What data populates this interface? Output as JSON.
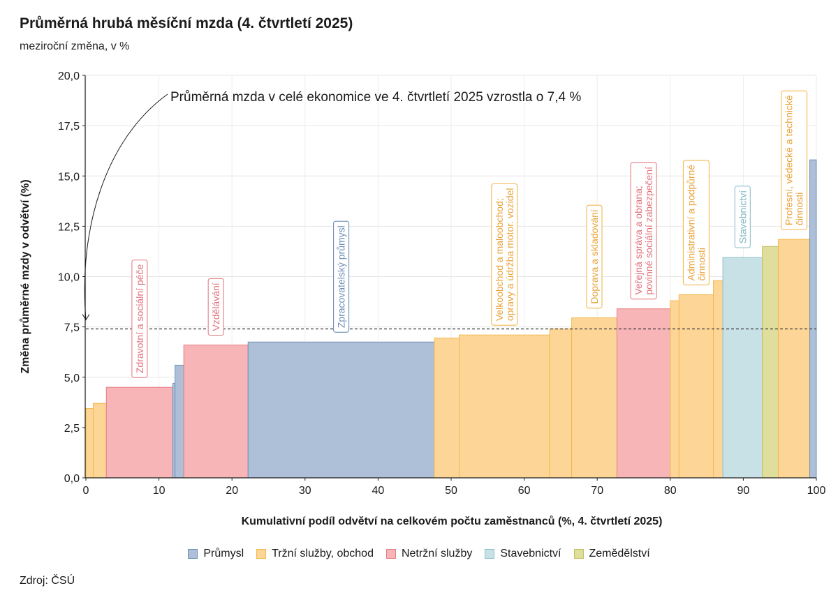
{
  "title": "Průměrná hrubá měsíční mzda (4. čtvrtletí 2025)",
  "subtitle": "meziroční změna, v %",
  "source": "Zdroj: ČSÚ",
  "chart_data": {
    "type": "bar",
    "variant": "variable-width (marimekko) bars",
    "xlabel": "Kumulativní podíl odvětví na celkovém počtu zaměstnanců (%, 4. čtvrtletí 2025)",
    "ylabel": "Změna průměrné mzdy v odvětví (%)",
    "xlim": [
      0,
      100
    ],
    "ylim": [
      0,
      20
    ],
    "x_ticks": [
      "0",
      "10",
      "20",
      "30",
      "40",
      "50",
      "60",
      "70",
      "80",
      "90",
      "100"
    ],
    "y_ticks": [
      "0,0",
      "2,5",
      "5,0",
      "7,5",
      "10,0",
      "12,5",
      "15,0",
      "17,5",
      "20,0"
    ],
    "grid": true,
    "reference_line": {
      "value": 7.4,
      "style": "dashed"
    },
    "annotation": {
      "text": "Průměrná mzda v celé ekonomice ve 4. čtvrtletí 2025 vzrostla o 7,4 %",
      "points_to_y": 7.4
    },
    "categories": [
      {
        "name": "Průmysl",
        "color": "#aebfd8",
        "border": "#6f8fb8",
        "text": "#6f8fb8"
      },
      {
        "name": "Tržní služby, obchod",
        "color": "#fdd697",
        "border": "#f2b84f",
        "text": "#e8a33a"
      },
      {
        "name": "Netržní služby",
        "color": "#f7b5b7",
        "border": "#e57f86",
        "text": "#e0707a"
      },
      {
        "name": "Stavebnictví",
        "color": "#c7e1e6",
        "border": "#8fc1cc",
        "text": "#7fb6c2"
      },
      {
        "name": "Zemědělství",
        "color": "#e0de9c",
        "border": "#c3c065",
        "text": "#a9a64f"
      }
    ],
    "bars": [
      {
        "x0": 0.0,
        "x1": 1.0,
        "value": 3.45,
        "category": 1
      },
      {
        "x0": 1.0,
        "x1": 2.8,
        "value": 3.7,
        "category": 1
      },
      {
        "x0": 2.8,
        "x1": 11.9,
        "value": 4.5,
        "category": 2,
        "label": "Zdravotní a sociální péče"
      },
      {
        "x0": 11.9,
        "x1": 12.2,
        "value": 4.7,
        "category": 0
      },
      {
        "x0": 12.2,
        "x1": 13.4,
        "value": 5.6,
        "category": 0
      },
      {
        "x0": 13.4,
        "x1": 22.2,
        "value": 6.6,
        "category": 2,
        "label": "Vzdělávání"
      },
      {
        "x0": 22.2,
        "x1": 47.7,
        "value": 6.75,
        "category": 0,
        "label": "Zpracovatelský průmysl"
      },
      {
        "x0": 47.7,
        "x1": 51.1,
        "value": 6.95,
        "category": 1
      },
      {
        "x0": 51.1,
        "x1": 63.5,
        "value": 7.1,
        "category": 1,
        "label": "Velkoobchod a maloobchod; opravy a údržba motor. vozidel"
      },
      {
        "x0": 63.5,
        "x1": 66.5,
        "value": 7.4,
        "category": 1
      },
      {
        "x0": 66.5,
        "x1": 72.7,
        "value": 7.95,
        "category": 1,
        "label": "Doprava a skladování"
      },
      {
        "x0": 72.7,
        "x1": 80.0,
        "value": 8.4,
        "category": 2,
        "label": "Veřejná správa a obrana; povinné sociální zabezpečení"
      },
      {
        "x0": 80.0,
        "x1": 81.2,
        "value": 8.8,
        "category": 1
      },
      {
        "x0": 81.2,
        "x1": 85.9,
        "value": 9.1,
        "category": 1,
        "label": "Administrativní a podpůrné činnosti"
      },
      {
        "x0": 85.9,
        "x1": 87.2,
        "value": 9.8,
        "category": 1
      },
      {
        "x0": 87.2,
        "x1": 92.6,
        "value": 10.95,
        "category": 3,
        "label": "Stavebnictví"
      },
      {
        "x0": 92.6,
        "x1": 94.8,
        "value": 11.5,
        "category": 4
      },
      {
        "x0": 94.8,
        "x1": 99.1,
        "value": 11.85,
        "category": 1,
        "label": "Profesní, vědecké a technické činnosti"
      },
      {
        "x0": 99.1,
        "x1": 100.0,
        "value": 15.8,
        "category": 0
      }
    ]
  }
}
